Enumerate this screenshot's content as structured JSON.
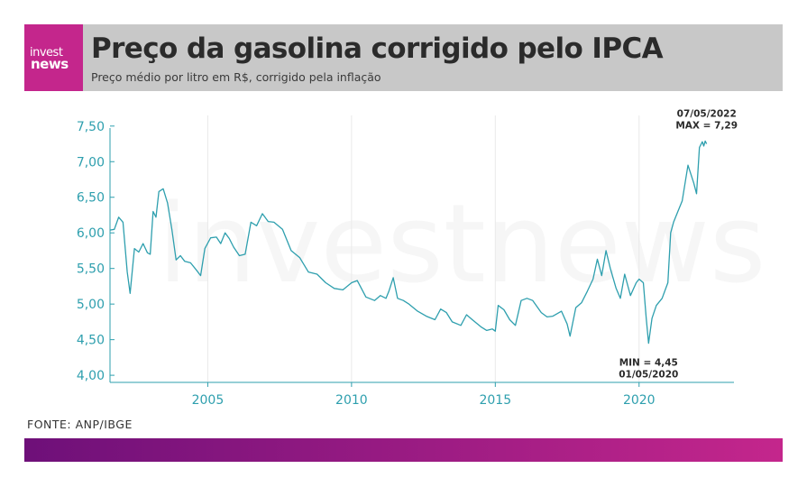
{
  "header": {
    "logo_line1": "invest",
    "logo_line2": "news",
    "title": "Preço da gasolina corrigido pelo IPCA",
    "subtitle": "Preço médio por litro em R$, corrigido pela inflação"
  },
  "watermark": "investnews",
  "source": "FONTE: ANP/IBGE",
  "colors": {
    "line": "#2e9fae",
    "brand": "#c4268c",
    "brand_dark": "#6e1079",
    "header_bg": "#c8c8c8"
  },
  "chart_data": {
    "type": "line",
    "title": "Preço da gasolina corrigido pelo IPCA",
    "xlabel": "",
    "ylabel": "",
    "ylim": [
      3.9,
      7.7
    ],
    "xlim": [
      2001.6,
      2023.3
    ],
    "yticks": [
      4.0,
      4.5,
      5.0,
      5.5,
      6.0,
      6.5,
      7.0,
      7.5
    ],
    "ytick_labels": [
      "4,00",
      "4,50",
      "5,00",
      "5,50",
      "6,00",
      "6,50",
      "7,00",
      "7,50"
    ],
    "xticks": [
      2005,
      2010,
      2015,
      2020
    ],
    "xtick_labels": [
      "2005",
      "2010",
      "2015",
      "2020"
    ],
    "grid": "vertical",
    "series": [
      {
        "x": [
          2001.6,
          2001.75,
          2001.9,
          2002.05,
          2002.2,
          2002.3,
          2002.45,
          2002.6,
          2002.75,
          2002.9,
          2003.0,
          2003.1,
          2003.2,
          2003.3,
          2003.45,
          2003.6,
          2003.75,
          2003.9,
          2004.05,
          2004.2,
          2004.4,
          2004.6,
          2004.75,
          2004.9,
          2005.1,
          2005.3,
          2005.45,
          2005.6,
          2005.75,
          2005.9,
          2006.1,
          2006.3,
          2006.5,
          2006.7,
          2006.9,
          2007.1,
          2007.3,
          2007.6,
          2007.9,
          2008.2,
          2008.5,
          2008.8,
          2009.1,
          2009.4,
          2009.7,
          2010.0,
          2010.2,
          2010.5,
          2010.8,
          2011.0,
          2011.2,
          2011.3,
          2011.45,
          2011.6,
          2011.8,
          2012.0,
          2012.3,
          2012.6,
          2012.9,
          2013.1,
          2013.3,
          2013.5,
          2013.8,
          2014.0,
          2014.2,
          2014.5,
          2014.7,
          2014.9,
          2015.0,
          2015.1,
          2015.3,
          2015.5,
          2015.7,
          2015.9,
          2016.1,
          2016.3,
          2016.6,
          2016.8,
          2017.0,
          2017.3,
          2017.5,
          2017.6,
          2017.8,
          2018.0,
          2018.2,
          2018.4,
          2018.55,
          2018.7,
          2018.85,
          2019.0,
          2019.2,
          2019.35,
          2019.5,
          2019.7,
          2019.9,
          2020.0,
          2020.15,
          2020.25,
          2020.33,
          2020.45,
          2020.6,
          2020.8,
          2021.0,
          2021.1,
          2021.2,
          2021.35,
          2021.5,
          2021.7,
          2021.9,
          2022.0,
          2022.1,
          2022.2,
          2022.25,
          2022.3,
          2022.35
        ],
        "values": [
          6.04,
          6.05,
          6.22,
          6.15,
          5.45,
          5.15,
          5.78,
          5.73,
          5.85,
          5.72,
          5.7,
          6.3,
          6.22,
          6.58,
          6.62,
          6.42,
          6.05,
          5.62,
          5.68,
          5.6,
          5.58,
          5.48,
          5.4,
          5.78,
          5.93,
          5.94,
          5.85,
          6.0,
          5.92,
          5.8,
          5.68,
          5.7,
          6.15,
          6.1,
          6.27,
          6.16,
          6.15,
          6.05,
          5.75,
          5.65,
          5.45,
          5.42,
          5.3,
          5.22,
          5.2,
          5.3,
          5.33,
          5.1,
          5.05,
          5.12,
          5.08,
          5.18,
          5.37,
          5.08,
          5.05,
          5.0,
          4.9,
          4.83,
          4.78,
          4.93,
          4.88,
          4.75,
          4.7,
          4.85,
          4.78,
          4.68,
          4.63,
          4.65,
          4.62,
          4.98,
          4.92,
          4.78,
          4.7,
          5.05,
          5.08,
          5.05,
          4.88,
          4.82,
          4.83,
          4.9,
          4.72,
          4.55,
          4.95,
          5.02,
          5.18,
          5.35,
          5.63,
          5.4,
          5.75,
          5.5,
          5.22,
          5.08,
          5.42,
          5.12,
          5.3,
          5.35,
          5.3,
          4.8,
          4.45,
          4.8,
          4.98,
          5.08,
          5.3,
          6.0,
          6.15,
          6.3,
          6.45,
          6.95,
          6.7,
          6.55,
          7.2,
          7.28,
          7.22,
          7.29,
          7.25
        ]
      }
    ],
    "annotations": [
      {
        "x": 2022.35,
        "y": 7.29,
        "line1": "07/05/2022",
        "line2": "MAX = 7,29"
      },
      {
        "x": 2020.33,
        "y": 4.45,
        "line1": "MIN = 4,45",
        "line2": "01/05/2020"
      }
    ]
  }
}
